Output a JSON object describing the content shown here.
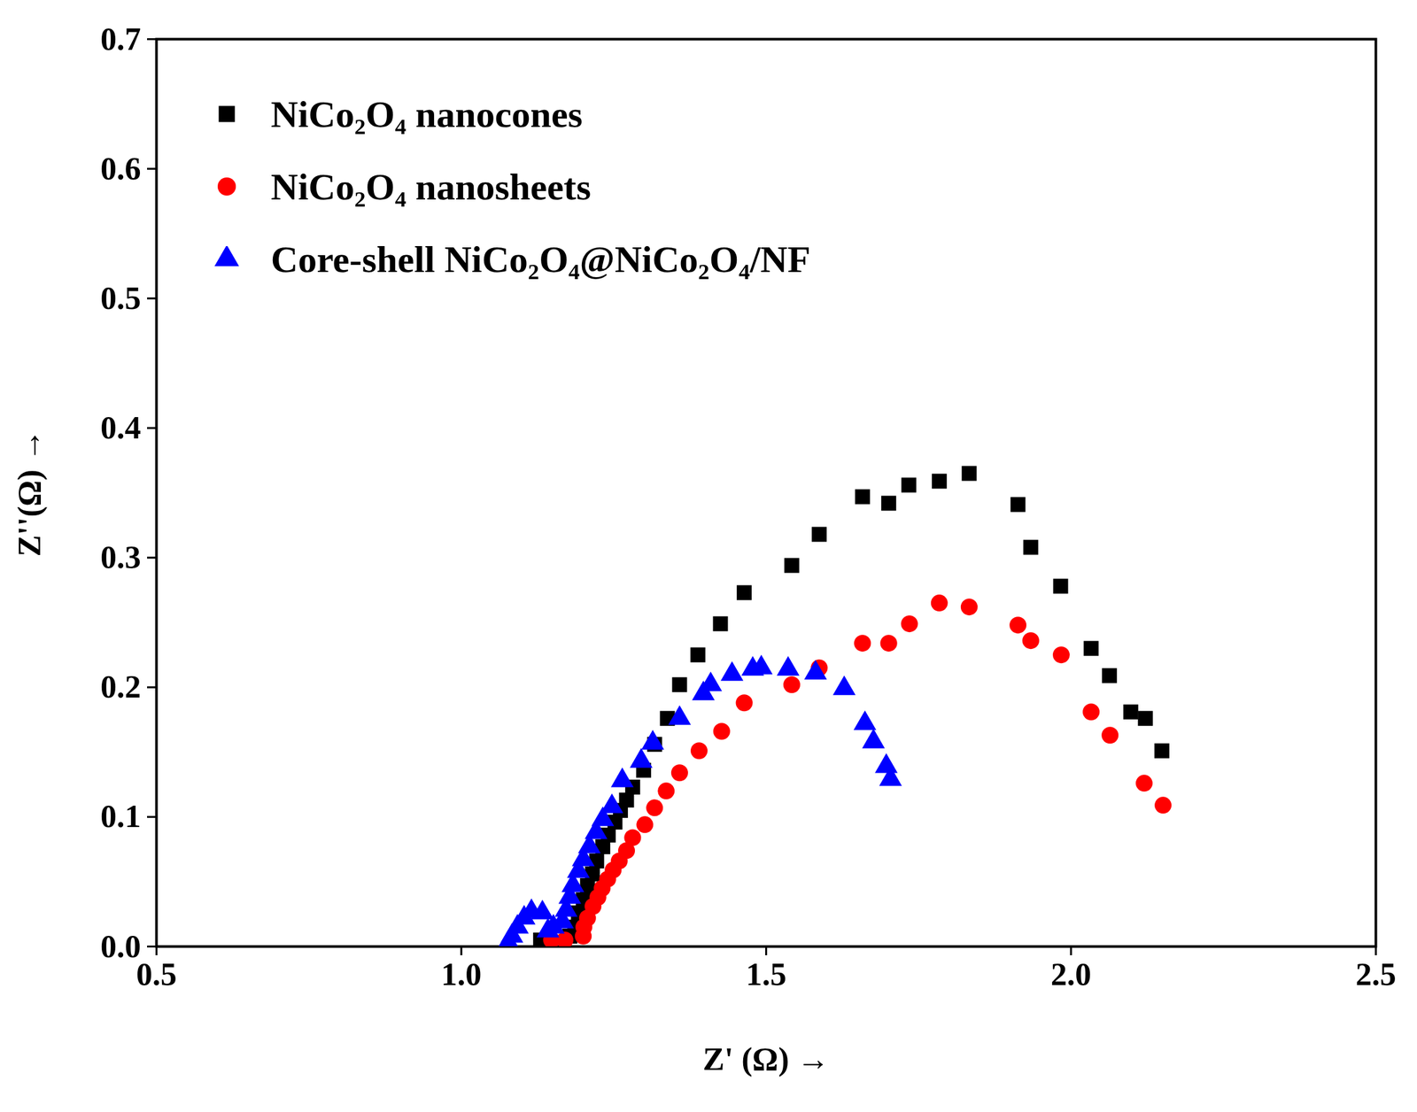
{
  "chart_data": {
    "type": "scatter",
    "x_label": "Z' (Ω)",
    "y_label": "Z''(Ω)",
    "xlim": [
      0.5,
      2.5
    ],
    "xticks": [
      0.5,
      {
        "value": 1,
        "label": "1.0"
      },
      1.5,
      {
        "value": 2,
        "label": "2.0"
      },
      2.5
    ],
    "ylim": [
      0,
      0.7
    ],
    "yticks": [
      {
        "value": 0,
        "label": "0.0"
      },
      0.1,
      0.2,
      0.3,
      0.4,
      0.5,
      0.6,
      0.7
    ],
    "grid": false,
    "legend": "upper left",
    "series": [
      {
        "name": "NiCo₂O₄ nanocones",
        "color": "#000000",
        "marker": "square",
        "x": [
          1.13,
          1.178,
          1.186,
          1.192,
          1.2,
          1.207,
          1.215,
          1.222,
          1.232,
          1.241,
          1.252,
          1.261,
          1.271,
          1.281,
          1.299,
          1.317,
          1.338,
          1.358,
          1.388,
          1.425,
          1.464,
          1.542,
          1.587,
          1.658,
          1.701,
          1.734,
          1.784,
          1.833,
          1.913,
          1.934,
          1.983,
          2.033,
          2.063,
          2.098,
          2.122,
          2.149
        ],
        "values": [
          0.005,
          0.008,
          0.015,
          0.026,
          0.036,
          0.047,
          0.056,
          0.066,
          0.077,
          0.086,
          0.096,
          0.105,
          0.113,
          0.123,
          0.136,
          0.156,
          0.176,
          0.202,
          0.225,
          0.249,
          0.273,
          0.294,
          0.318,
          0.347,
          0.342,
          0.356,
          0.359,
          0.365,
          0.341,
          0.308,
          0.278,
          0.23,
          0.209,
          0.181,
          0.176,
          0.151
        ]
      },
      {
        "name": "NiCo₂O₄ nanosheets",
        "color": "#ff0000",
        "marker": "circle",
        "x": [
          1.148,
          1.17,
          1.2,
          1.201,
          1.207,
          1.216,
          1.224,
          1.231,
          1.24,
          1.249,
          1.259,
          1.271,
          1.281,
          1.301,
          1.317,
          1.336,
          1.358,
          1.39,
          1.427,
          1.464,
          1.542,
          1.587,
          1.658,
          1.701,
          1.735,
          1.784,
          1.833,
          1.913,
          1.934,
          1.984,
          2.033,
          2.064,
          2.12,
          2.151
        ],
        "values": [
          0.005,
          0.005,
          0.008,
          0.015,
          0.022,
          0.031,
          0.038,
          0.045,
          0.052,
          0.059,
          0.066,
          0.074,
          0.084,
          0.094,
          0.107,
          0.12,
          0.134,
          0.151,
          0.166,
          0.188,
          0.202,
          0.215,
          0.234,
          0.234,
          0.249,
          0.265,
          0.262,
          0.248,
          0.236,
          0.225,
          0.181,
          0.163,
          0.126,
          0.109
        ]
      },
      {
        "name": "Core-shell NiCo₂O₄@NiCo₂O₄/NF",
        "color": "#0000ff",
        "marker": "triangle",
        "x": [
          1.077,
          1.083,
          1.092,
          1.103,
          1.115,
          1.133,
          1.142,
          1.151,
          1.166,
          1.172,
          1.178,
          1.183,
          1.192,
          1.2,
          1.21,
          1.221,
          1.232,
          1.247,
          1.264,
          1.295,
          1.314,
          1.358,
          1.397,
          1.409,
          1.444,
          1.478,
          1.492,
          1.536,
          1.581,
          1.628,
          1.662,
          1.676,
          1.697,
          1.704
        ],
        "values": [
          0.003,
          0.008,
          0.015,
          0.022,
          0.027,
          0.026,
          0.012,
          0.015,
          0.019,
          0.028,
          0.038,
          0.047,
          0.058,
          0.067,
          0.077,
          0.088,
          0.098,
          0.108,
          0.128,
          0.143,
          0.157,
          0.176,
          0.195,
          0.202,
          0.21,
          0.214,
          0.215,
          0.214,
          0.211,
          0.199,
          0.172,
          0.158,
          0.139,
          0.129
        ]
      }
    ]
  }
}
